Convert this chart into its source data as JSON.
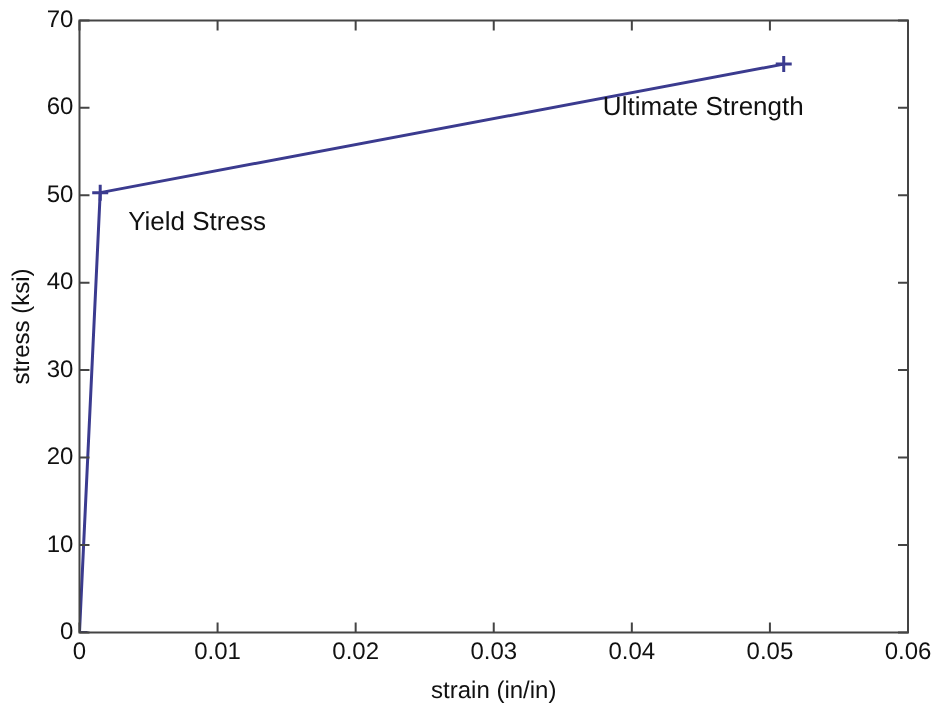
{
  "chart_data": {
    "type": "line",
    "xlabel": "strain (in/in)",
    "ylabel": "stress (ksi)",
    "x": [
      0,
      0.0015,
      0.051
    ],
    "series": [
      {
        "color": "#3b3b8f",
        "values": [
          0,
          50.3,
          65
        ]
      }
    ],
    "xlim": [
      0,
      0.06
    ],
    "xticks": [
      0,
      0.01,
      0.02,
      0.03,
      0.04,
      0.05,
      0.06
    ],
    "ylim": [
      0,
      70
    ],
    "yticks": [
      0,
      10,
      20,
      30,
      40,
      50,
      60,
      70
    ],
    "grid": false,
    "legend": false,
    "marker": "cross",
    "line_style": "solid",
    "annotations": [
      {
        "text": "Yield Stress",
        "x": 0.0015,
        "y": 50.3
      },
      {
        "text": "Ultimate Strength",
        "x": 0.051,
        "y": 65
      }
    ]
  }
}
